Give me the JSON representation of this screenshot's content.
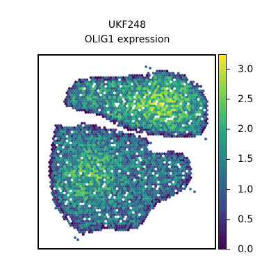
{
  "chart_data": {
    "type": "scatter",
    "title": "UKF248",
    "subtitle": "OLIG1 expression",
    "xlabel": "",
    "ylabel": "",
    "grid": false,
    "colormap": "viridis",
    "colormap_colors": [
      "#440154",
      "#414487",
      "#2a788e",
      "#22a884",
      "#7ad151",
      "#fde725"
    ],
    "colorbar": {
      "range": [
        0.0,
        3.25
      ],
      "ticks": [
        0.0,
        0.5,
        1.0,
        1.5,
        2.0,
        2.5,
        3.0
      ],
      "tick_labels": [
        "0.0",
        "0.5",
        "1.0",
        "1.5",
        "2.0",
        "2.5",
        "3.0"
      ]
    },
    "spots_description_values": {
      "upper_lobe_center": 2.6,
      "upper_lobe_edges": 1.6,
      "lower_lobe_center": 2.2,
      "tissue_border": 0.3
    }
  }
}
